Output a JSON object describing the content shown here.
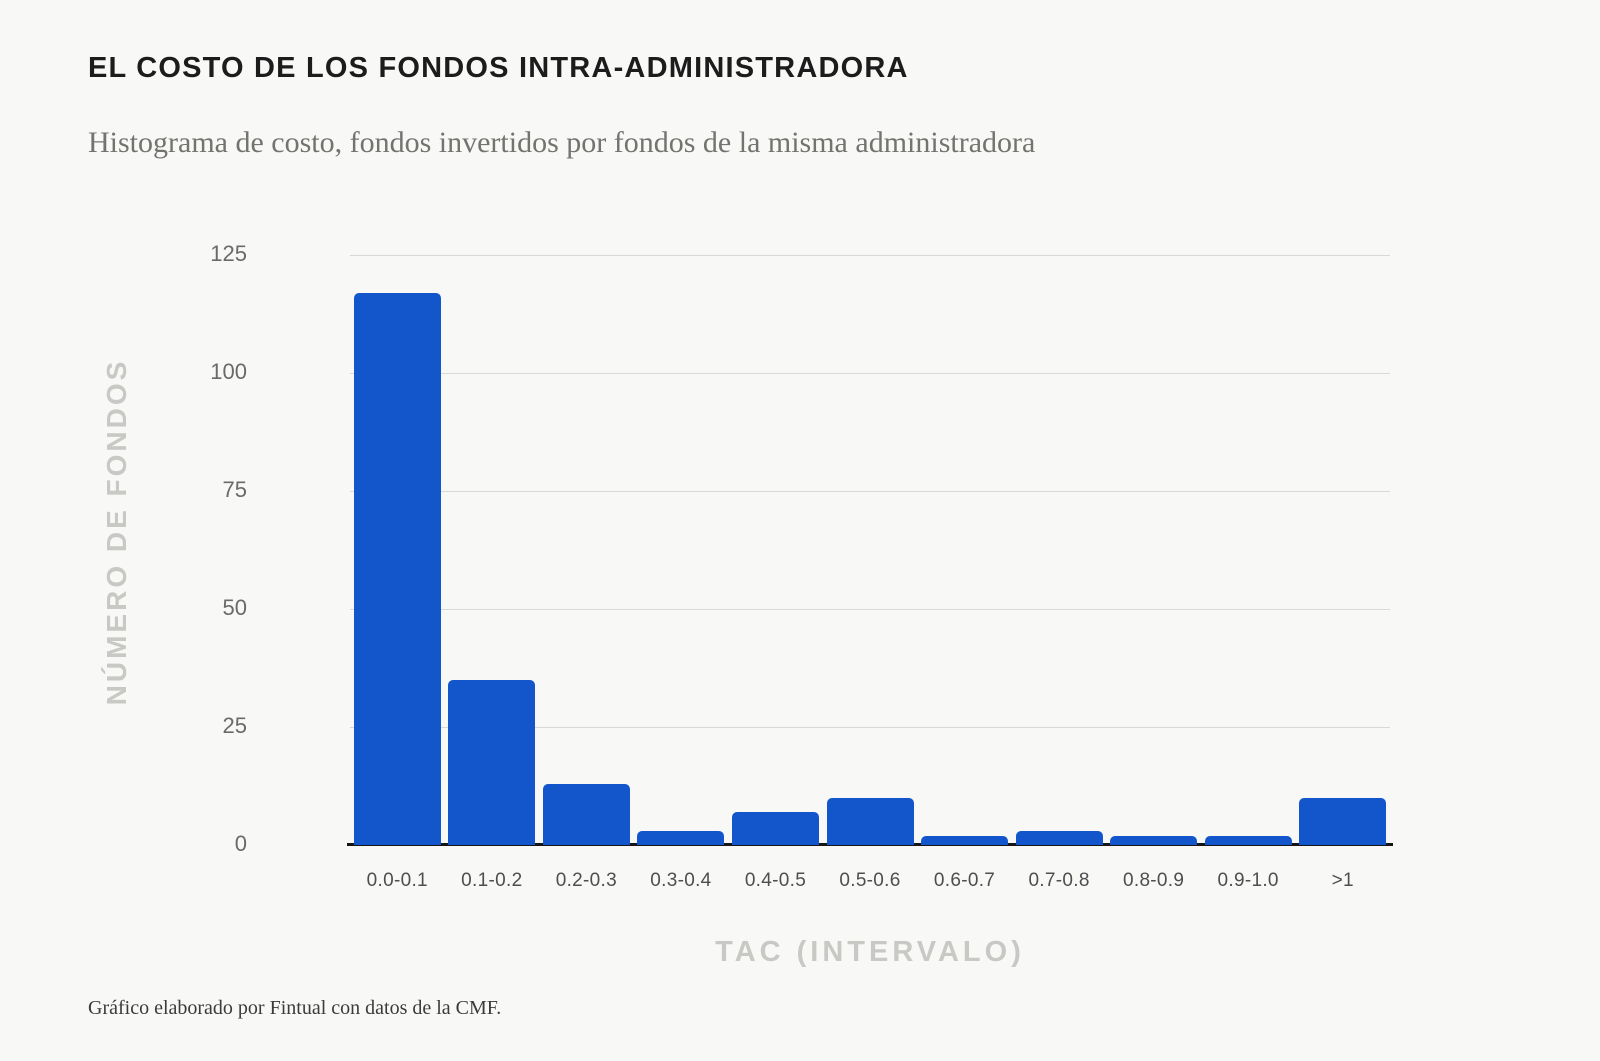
{
  "page": {
    "title": "EL COSTO DE LOS FONDOS INTRA-ADMINISTRADORA",
    "subtitle": "Histograma de costo, fondos invertidos por fondos de la misma administradora",
    "source_note": "Gráfico elaborado por Fintual con datos de la CMF."
  },
  "colors": {
    "background": "#f8f8f7",
    "bar": "#1355cb",
    "title_text": "#1c1c1c",
    "subtitle_text": "#73736f",
    "axis_title_text": "#c8c8c5",
    "y_tick_text": "#6a6a6a",
    "x_tick_text": "#4e4e50",
    "gridline": "#d9d9d6",
    "baseline": "#151515",
    "source_text": "#3b3b39"
  },
  "chart_data": {
    "type": "bar",
    "title": "EL COSTO DE LOS FONDOS INTRA-ADMINISTRADORA",
    "subtitle": "Histograma de costo, fondos invertidos por fondos de la misma administradora",
    "categories": [
      "0.0-0.1",
      "0.1-0.2",
      "0.2-0.3",
      "0.3-0.4",
      "0.4-0.5",
      "0.5-0.6",
      "0.6-0.7",
      "0.7-0.8",
      "0.8-0.9",
      "0.9-1.0",
      ">1"
    ],
    "values": [
      117,
      35,
      13,
      3,
      7,
      10,
      2,
      3,
      2,
      2,
      10
    ],
    "xlabel": "TAC (INTERVALO)",
    "ylabel": "NÚMERO DE FONDOS",
    "ylim": [
      0,
      125
    ],
    "yticks": [
      0,
      25,
      50,
      75,
      100,
      125
    ],
    "grid": true,
    "legend_position": "none",
    "bar_color": "#1355cb",
    "source": "Gráfico elaborado por Fintual con datos de la CMF."
  }
}
